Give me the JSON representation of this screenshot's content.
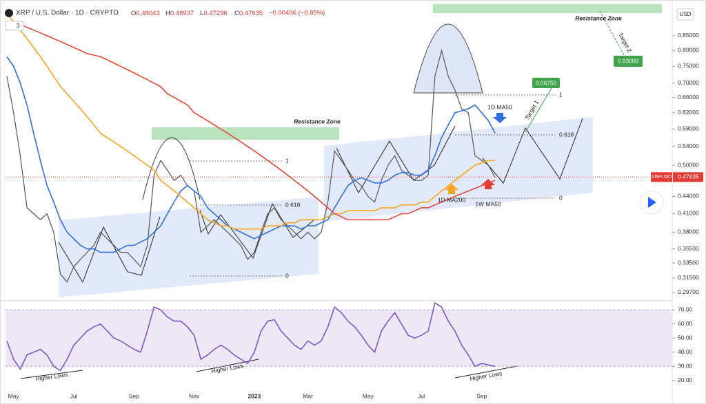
{
  "header": {
    "title": "XRP / U.S. Dollar · 1D · CRYPTO",
    "ohlc": [
      {
        "label": "O",
        "value": 0.48043
      },
      {
        "label": "H",
        "value": 0.48937
      },
      {
        "label": "L",
        "value": 0.47296
      },
      {
        "label": "C",
        "value": 0.47635
      }
    ],
    "change": "−0.00406 (−0.85%)",
    "indicator_count": 3,
    "currency": "USD"
  },
  "chart_data": [
    {
      "type": "line",
      "log_scale": true,
      "grid": false,
      "ylim": [
        0.287,
        0.962
      ],
      "yticks": [
        {
          "value": 0.85,
          "label": "0.85000"
        },
        {
          "value": 0.8,
          "label": "0.80000"
        },
        {
          "value": 0.75,
          "label": "0.75000"
        },
        {
          "value": 0.7,
          "label": "0.70000"
        },
        {
          "value": 0.66,
          "label": "0.66000"
        },
        {
          "value": 0.62,
          "label": "0.62000"
        },
        {
          "value": 0.58,
          "label": "0.58000"
        },
        {
          "value": 0.54,
          "label": "0.54000"
        },
        {
          "value": 0.5,
          "label": "0.50000"
        },
        {
          "value": 0.44,
          "label": "0.44000"
        },
        {
          "value": 0.41,
          "label": "0.41000"
        },
        {
          "value": 0.38,
          "label": "0.38000"
        },
        {
          "value": 0.355,
          "label": "0.35500"
        },
        {
          "value": 0.335,
          "label": "0.33500"
        },
        {
          "value": 0.315,
          "label": "0.31500"
        },
        {
          "value": 0.297,
          "label": "0.29700"
        }
      ],
      "categories": [
        null,
        "May",
        null,
        null,
        null,
        null,
        null,
        null,
        null,
        null,
        "Jul",
        null,
        null,
        null,
        null,
        null,
        null,
        null,
        null,
        "Sep",
        null,
        null,
        null,
        null,
        null,
        null,
        null,
        null,
        "Nov",
        null,
        null,
        null,
        null,
        null,
        null,
        null,
        null,
        "2023",
        null,
        null,
        null,
        null,
        null,
        null,
        null,
        "Mar",
        null,
        null,
        null,
        null,
        null,
        null,
        null,
        null,
        "May",
        null,
        null,
        null,
        null,
        null,
        null,
        null,
        "Jul",
        null,
        null,
        null,
        null,
        null,
        null,
        null,
        null,
        "Sep",
        null,
        null
      ],
      "symbol_tag": "XRPUSD",
      "last_price": 0.47635,
      "series": [
        {
          "color": "#555555",
          "values": [
            0.72,
            0.62,
            0.52,
            0.42,
            0.41,
            0.4,
            0.41,
            0.38,
            0.32,
            0.31,
            0.33,
            0.34,
            0.35,
            0.36,
            0.38,
            0.37,
            0.36,
            0.35,
            0.35,
            0.34,
            0.33,
            0.36,
            0.48,
            0.51,
            0.49,
            0.47,
            0.48,
            0.46,
            0.45,
            0.38,
            0.39,
            0.4,
            0.39,
            0.38,
            0.37,
            0.36,
            0.34,
            0.35,
            0.38,
            0.41,
            0.42,
            0.4,
            0.39,
            0.38,
            0.37,
            0.38,
            0.37,
            0.38,
            0.43,
            0.53,
            0.51,
            0.49,
            0.47,
            0.46,
            0.44,
            0.43,
            0.47,
            0.5,
            0.52,
            0.49,
            0.48,
            0.47,
            0.47,
            0.48,
            0.72,
            0.8,
            0.72,
            0.68,
            0.63,
            0.62,
            0.52,
            0.51,
            0.5,
            0.476
          ]
        },
        {
          "color": "#2f6fde",
          "values": [
            0.78,
            0.75,
            0.7,
            0.64,
            0.57,
            0.51,
            0.46,
            0.43,
            0.4,
            0.38,
            0.37,
            0.36,
            0.355,
            0.355,
            0.35,
            0.35,
            0.35,
            0.355,
            0.36,
            0.36,
            0.365,
            0.37,
            0.38,
            0.39,
            0.41,
            0.43,
            0.45,
            0.46,
            0.45,
            0.44,
            0.42,
            0.41,
            0.4,
            0.39,
            0.385,
            0.38,
            0.375,
            0.37,
            0.375,
            0.38,
            0.385,
            0.39,
            0.39,
            0.39,
            0.385,
            0.39,
            0.39,
            0.395,
            0.4,
            0.42,
            0.44,
            0.46,
            0.47,
            0.475,
            0.47,
            0.465,
            0.465,
            0.47,
            0.48,
            0.485,
            0.485,
            0.48,
            0.48,
            0.49,
            0.52,
            0.56,
            0.59,
            0.62,
            0.625,
            0.63,
            0.64,
            0.62,
            0.6,
            0.57
          ]
        },
        {
          "color": "#f5a623",
          "values": [
            0.93,
            0.9,
            0.87,
            0.84,
            0.81,
            0.78,
            0.75,
            0.72,
            0.69,
            0.67,
            0.65,
            0.63,
            0.61,
            0.59,
            0.57,
            0.56,
            0.55,
            0.54,
            0.53,
            0.52,
            0.51,
            0.5,
            0.49,
            0.47,
            0.46,
            0.45,
            0.44,
            0.43,
            0.42,
            0.41,
            0.4,
            0.395,
            0.39,
            0.39,
            0.385,
            0.385,
            0.385,
            0.385,
            0.385,
            0.39,
            0.39,
            0.39,
            0.395,
            0.395,
            0.4,
            0.4,
            0.4,
            0.4,
            0.405,
            0.41,
            0.41,
            0.415,
            0.415,
            0.415,
            0.415,
            0.415,
            0.42,
            0.42,
            0.42,
            0.425,
            0.425,
            0.425,
            0.43,
            0.43,
            0.44,
            0.45,
            0.46,
            0.47,
            0.48,
            0.49,
            0.5,
            0.505,
            0.51,
            0.51
          ]
        },
        {
          "color": "#e0483a",
          "values": [
            0.9,
            0.895,
            0.89,
            0.88,
            0.87,
            0.86,
            0.85,
            0.84,
            0.83,
            0.82,
            0.81,
            0.8,
            0.79,
            0.785,
            0.78,
            0.77,
            0.76,
            0.75,
            0.74,
            0.73,
            0.72,
            0.71,
            0.7,
            0.69,
            0.67,
            0.66,
            0.65,
            0.64,
            0.62,
            0.61,
            0.6,
            0.59,
            0.58,
            0.57,
            0.56,
            0.55,
            0.54,
            0.53,
            0.52,
            0.51,
            0.5,
            0.49,
            0.48,
            0.47,
            0.46,
            0.45,
            0.44,
            0.43,
            0.42,
            0.41,
            0.405,
            0.4,
            0.4,
            0.4,
            0.4,
            0.4,
            0.4,
            0.4,
            0.405,
            0.41,
            0.41,
            0.415,
            0.42,
            0.42,
            0.425,
            0.43,
            0.435,
            0.44,
            0.445,
            0.45,
            0.455,
            0.46,
            0.465,
            0.47
          ]
        }
      ],
      "annotations": [
        "Resistance Zone",
        "Resistance Zone",
        "1",
        "0.618",
        "0",
        "1",
        "0.618",
        "0",
        "1D MA50",
        "1D MA200",
        "1W MA50",
        "Target 1",
        "Target 2",
        "0.56750",
        "0.93000"
      ]
    },
    {
      "type": "line",
      "grid": false,
      "band": [
        30,
        70
      ],
      "ylim": [
        14,
        75
      ],
      "yticks": [
        {
          "value": 70,
          "label": "70.00"
        },
        {
          "value": 60,
          "label": "60.00"
        },
        {
          "value": 50,
          "label": "50.00"
        },
        {
          "value": 40,
          "label": "40.00"
        },
        {
          "value": 30,
          "label": "30.00"
        },
        {
          "value": 20,
          "label": "20.00"
        }
      ],
      "series": [
        {
          "color": "#7e57c2",
          "values": [
            48,
            35,
            28,
            38,
            40,
            42,
            38,
            30,
            27,
            35,
            45,
            50,
            55,
            58,
            60,
            55,
            50,
            48,
            45,
            42,
            40,
            55,
            72,
            70,
            65,
            62,
            62,
            58,
            52,
            35,
            38,
            42,
            45,
            42,
            38,
            35,
            32,
            40,
            55,
            62,
            63,
            55,
            50,
            45,
            42,
            48,
            45,
            48,
            58,
            72,
            68,
            62,
            58,
            52,
            45,
            40,
            55,
            62,
            68,
            60,
            52,
            50,
            52,
            55,
            75,
            72,
            62,
            55,
            45,
            38,
            30,
            32,
            31,
            30
          ]
        }
      ],
      "annotations": [
        "Higher Lows",
        "Higher Lows",
        "Higher Lows"
      ]
    }
  ]
}
